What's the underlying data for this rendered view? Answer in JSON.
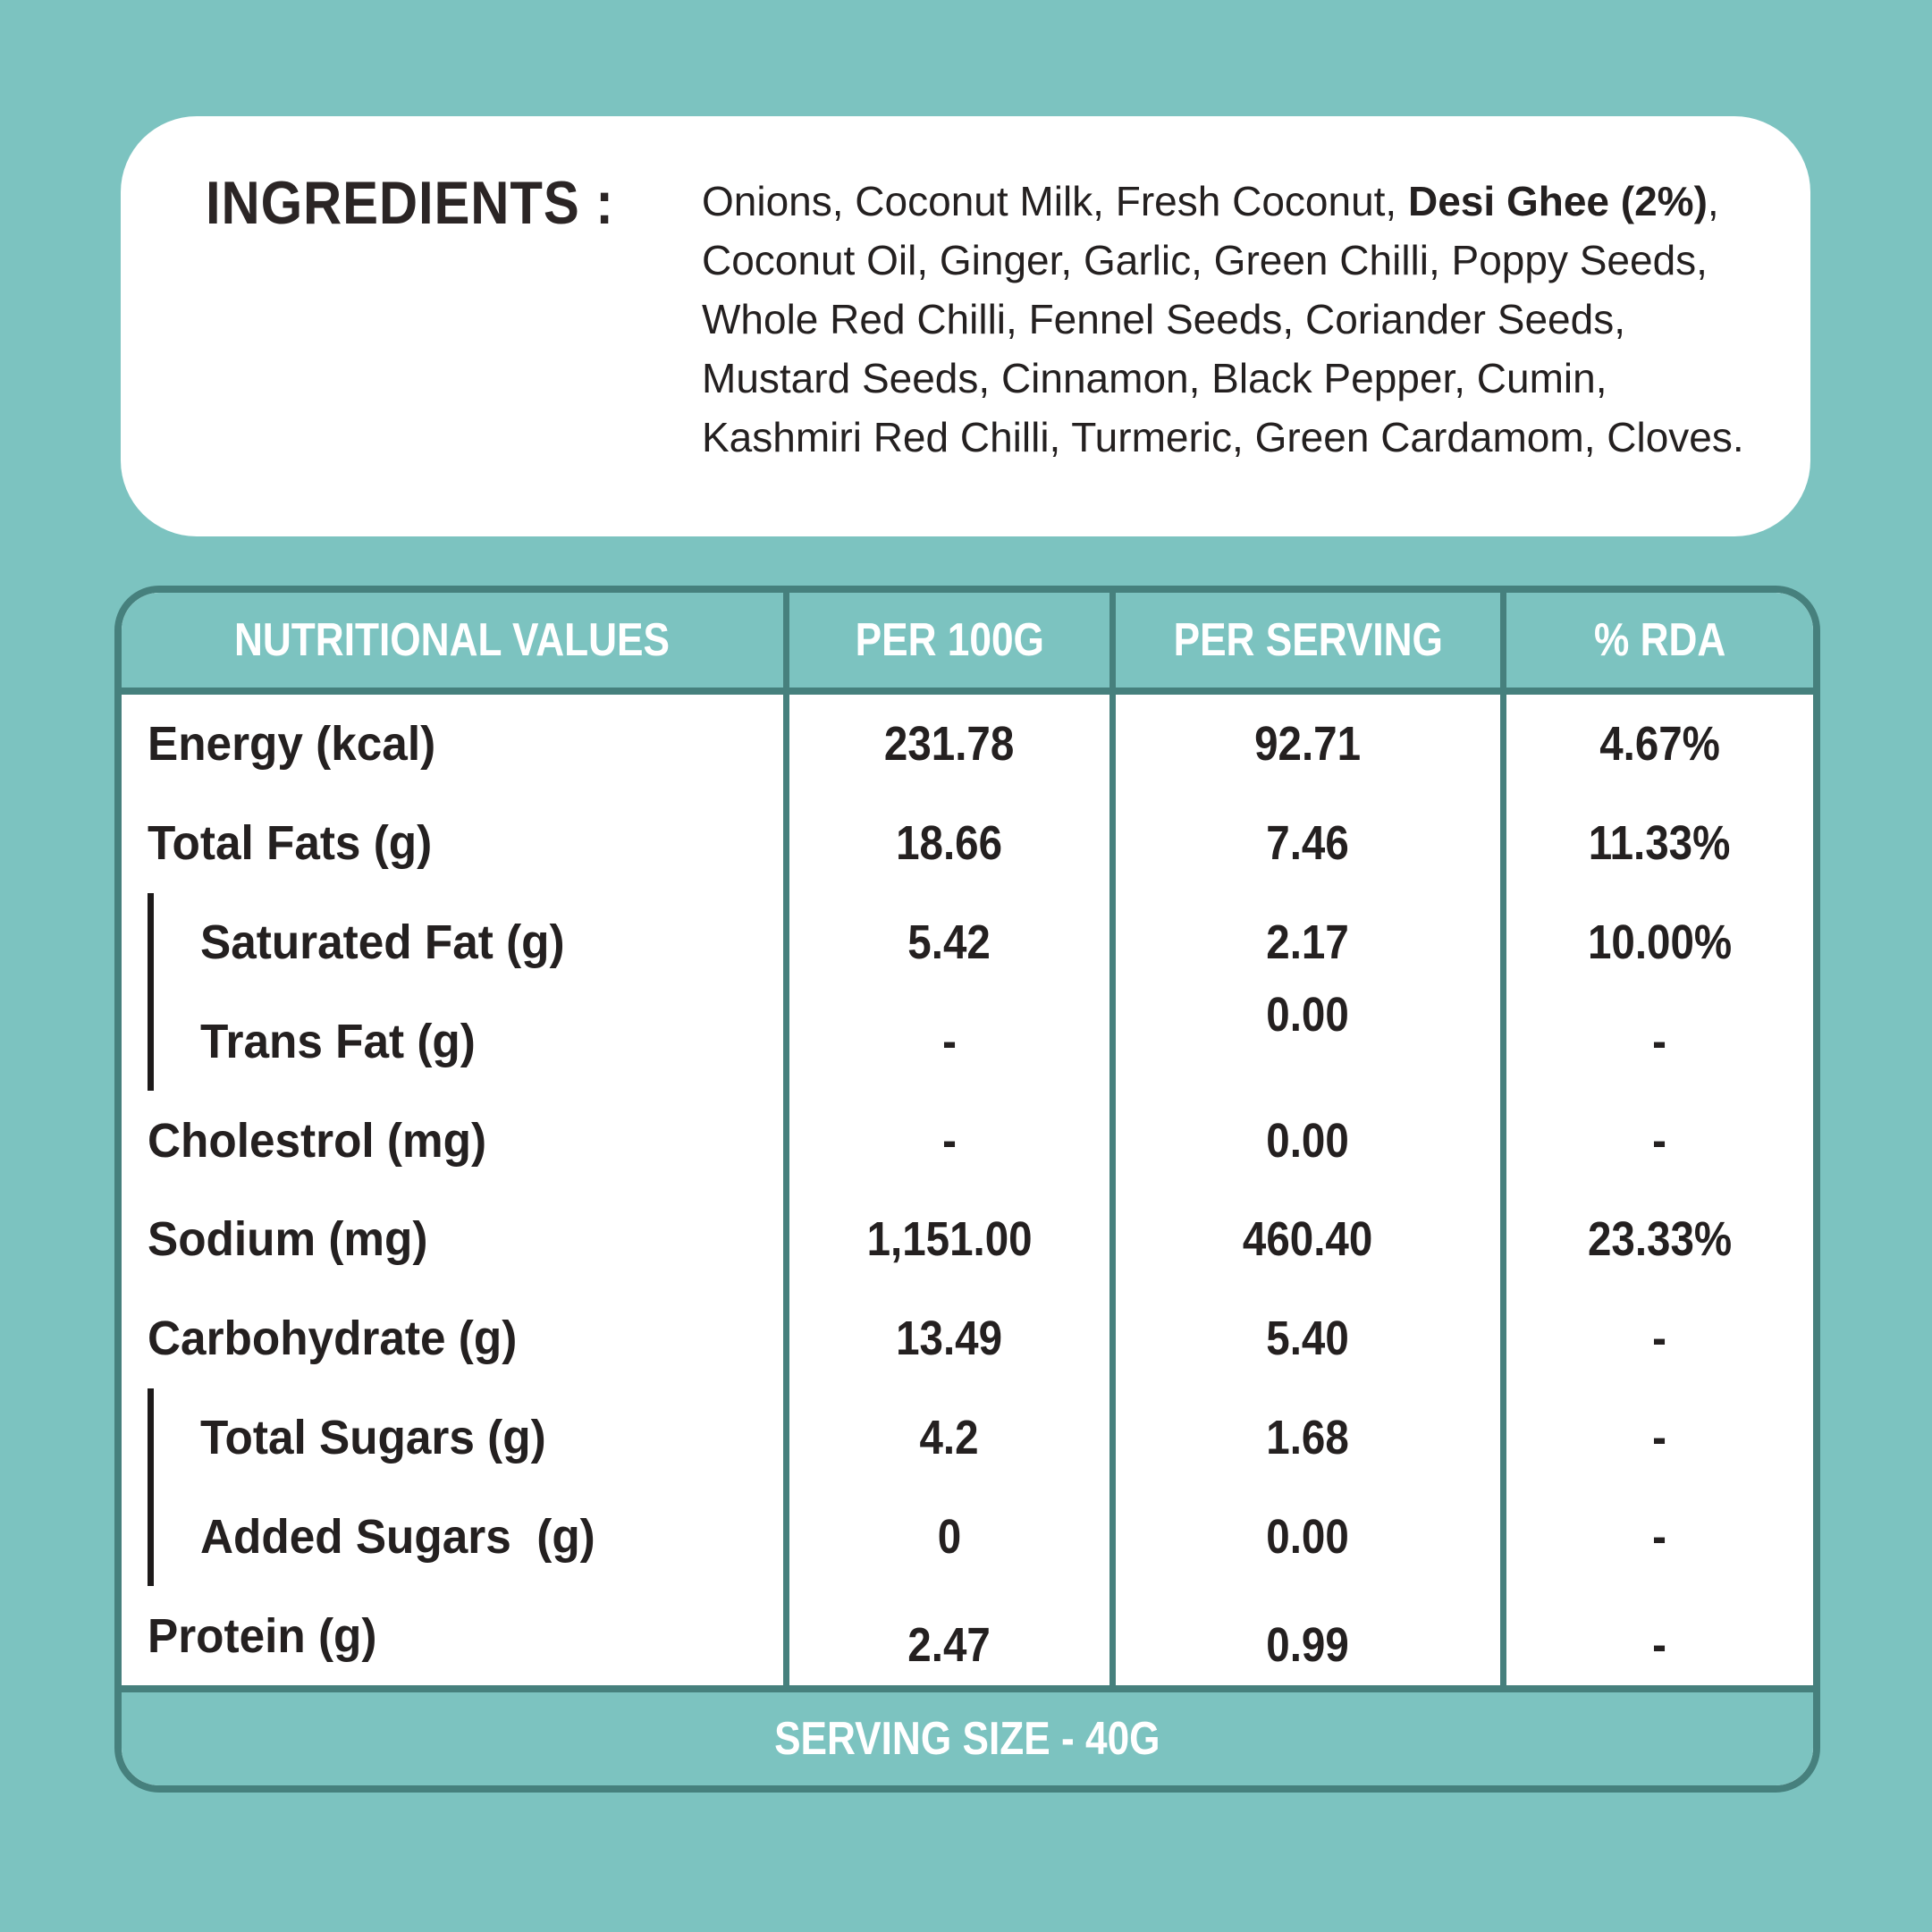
{
  "colors": {
    "background": "#7CC3C0",
    "border_dark_teal": "#46807D",
    "text_ink": "#242020",
    "white": "#FFFFFF"
  },
  "ingredients": {
    "label": "INGREDIENTS :",
    "before_bold": "Onions, Coconut Milk, Fresh Coconut, ",
    "bold": "Desi Ghee (2%)",
    "after_bold": ", Coconut Oil, Ginger, Garlic, Green Chilli, Poppy Seeds, Whole Red Chilli, Fennel Seeds, Coriander Seeds, Mustard Seeds, Cinnamon, Black Pepper, Cumin, Kashmiri Red Chilli, Turmeric, Green Cardamom, Cloves."
  },
  "table": {
    "headers": {
      "nutritional_values": "NUTRITIONAL VALUES",
      "per_100g": "PER 100G",
      "per_serving": "PER SERVING",
      "rda": "% RDA"
    },
    "rows": [
      {
        "label": "Energy (kcal)",
        "indent": false,
        "per_100g": "231.78",
        "per_serving": "92.71",
        "rda": "4.67%"
      },
      {
        "label": "Total Fats (g)",
        "indent": false,
        "per_100g": "18.66",
        "per_serving": "7.46",
        "rda": "11.33%"
      },
      {
        "label": "Saturated Fat (g)",
        "indent": true,
        "per_100g": "5.42",
        "per_serving": "2.17",
        "rda": "10.00%"
      },
      {
        "label": "Trans Fat (g)",
        "indent": true,
        "per_100g": "-",
        "per_serving": "0.00",
        "rda": "-"
      },
      {
        "label": "Cholestrol (mg)",
        "indent": false,
        "per_100g": "-",
        "per_serving": "0.00",
        "rda": "-"
      },
      {
        "label": "Sodium (mg)",
        "indent": false,
        "per_100g": "1,151.00",
        "per_serving": "460.40",
        "rda": "23.33%"
      },
      {
        "label": "Carbohydrate (g)",
        "indent": false,
        "per_100g": "13.49",
        "per_serving": "5.40",
        "rda": "-"
      },
      {
        "label": "Total Sugars (g)",
        "indent": true,
        "per_100g": "4.2",
        "per_serving": "1.68",
        "rda": "-"
      },
      {
        "label": "Added Sugars  (g)",
        "indent": true,
        "per_100g": "0",
        "per_serving": "0.00",
        "rda": "-"
      },
      {
        "label": "Protein (g)",
        "indent": false,
        "per_100g": "2.47",
        "per_serving": "0.99",
        "rda": "-"
      }
    ],
    "footer": "SERVING SIZE - 40G"
  }
}
